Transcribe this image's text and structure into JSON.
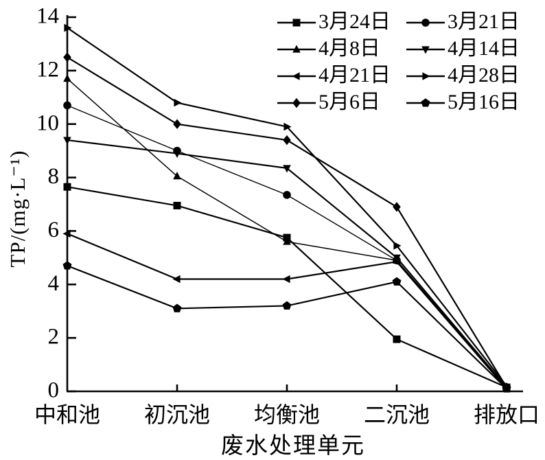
{
  "figure": {
    "background": "#ffffff",
    "line_color": "#000000",
    "text_color": "#000000"
  },
  "chart_data": {
    "type": "line",
    "title": "",
    "xlabel": "废水处理单元",
    "ylabel": "TP/(mg·L⁻¹)",
    "categories": [
      "中和池",
      "初沉池",
      "均衡池",
      "二沉池",
      "排放口"
    ],
    "ylim": [
      0,
      14
    ],
    "yticks": [
      0,
      2,
      4,
      6,
      8,
      10,
      12,
      14
    ],
    "grid": false,
    "legend_position": "top-right",
    "legend_columns": 2,
    "series": [
      {
        "name": "3月24日",
        "marker": "square",
        "values": [
          7.65,
          6.95,
          5.75,
          1.95,
          0.15
        ]
      },
      {
        "name": "3月21日",
        "marker": "circle",
        "values": [
          10.7,
          9.0,
          7.35,
          4.9,
          0.15
        ]
      },
      {
        "name": "4月8日",
        "marker": "triangle-up",
        "values": [
          11.7,
          8.05,
          5.6,
          4.9,
          0.15
        ]
      },
      {
        "name": "4月14日",
        "marker": "triangle-down",
        "values": [
          9.4,
          8.9,
          8.35,
          5.0,
          0.15
        ]
      },
      {
        "name": "4月21日",
        "marker": "triangle-left",
        "values": [
          5.9,
          4.2,
          4.2,
          4.85,
          0.1
        ]
      },
      {
        "name": "4月28日",
        "marker": "triangle-right",
        "values": [
          13.6,
          10.8,
          9.9,
          5.45,
          0.2
        ]
      },
      {
        "name": "5月6日",
        "marker": "diamond",
        "values": [
          12.5,
          10.0,
          9.4,
          6.9,
          0.15
        ]
      },
      {
        "name": "5月16日",
        "marker": "pentagon",
        "values": [
          4.7,
          3.1,
          3.2,
          4.1,
          0.1
        ]
      }
    ]
  }
}
